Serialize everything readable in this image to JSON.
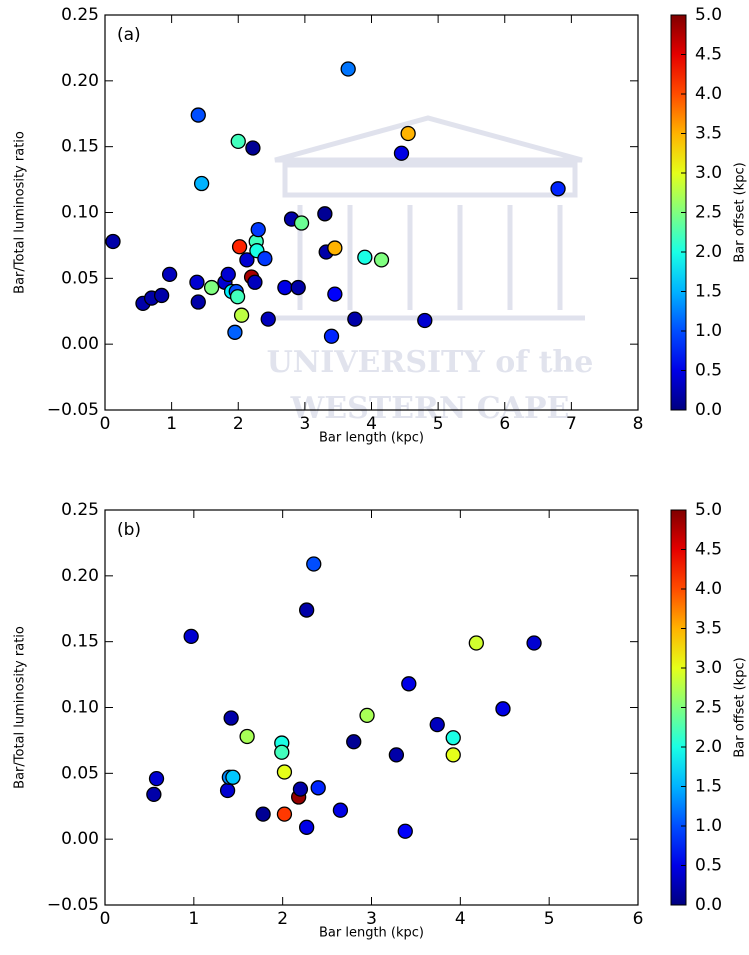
{
  "watermark": [
    "UNIVERSITY of the",
    "WESTERN CAPE"
  ],
  "chart_data": [
    {
      "type": "scatter",
      "annotation": "(a)",
      "x_label": "Bar length (kpc)",
      "y_label": "Bar/Total luminosity ratio",
      "x": [
        0.12,
        0.57,
        0.7,
        0.85,
        0.97,
        1.38,
        1.4,
        1.4,
        1.45,
        1.6,
        1.8,
        1.85,
        1.9,
        1.95,
        1.97,
        1.99,
        2.0,
        2.02,
        2.05,
        2.13,
        2.2,
        2.22,
        2.25,
        2.27,
        2.28,
        2.3,
        2.4,
        2.45,
        2.7,
        2.8,
        2.9,
        2.95,
        3.3,
        3.32,
        3.4,
        3.45,
        3.45,
        3.75,
        3.9,
        3.65,
        4.15,
        4.45,
        4.55,
        4.8,
        6.8
      ],
      "values": [
        0.078,
        0.031,
        0.035,
        0.037,
        0.053,
        0.047,
        0.032,
        0.174,
        0.122,
        0.043,
        0.047,
        0.053,
        0.04,
        0.009,
        0.04,
        0.036,
        0.154,
        0.074,
        0.022,
        0.064,
        0.051,
        0.149,
        0.047,
        0.078,
        0.071,
        0.087,
        0.065,
        0.019,
        0.043,
        0.095,
        0.043,
        0.092,
        0.099,
        0.07,
        0.006,
        0.073,
        0.038,
        0.019,
        0.066,
        0.209,
        0.064,
        0.145,
        0.16,
        0.018,
        0.118
      ],
      "color_values": [
        0.2,
        0.2,
        0.2,
        0.2,
        0.3,
        0.4,
        0.2,
        1.0,
        1.5,
        2.5,
        0.4,
        0.4,
        1.8,
        1.1,
        1.0,
        2.2,
        2.2,
        4.2,
        2.8,
        0.4,
        4.8,
        0.1,
        0.3,
        2.2,
        2.0,
        0.9,
        0.9,
        0.3,
        0.5,
        0.2,
        0.2,
        2.4,
        0.1,
        0.2,
        0.8,
        3.5,
        0.6,
        0.2,
        2.0,
        1.2,
        2.5,
        0.5,
        3.5,
        0.4,
        0.8
      ],
      "colormap": "jet",
      "xlim": [
        0,
        8
      ],
      "xticks": [
        0,
        1,
        2,
        3,
        4,
        5,
        6,
        7,
        8
      ],
      "ylim": [
        -0.05,
        0.25
      ],
      "yticks": [
        {
          "value": -0.05,
          "label": "−0.05"
        },
        {
          "value": 0,
          "label": "0.00"
        },
        0.05,
        {
          "value": 0.1,
          "label": "0.10"
        },
        0.15,
        {
          "value": 0.2,
          "label": "0.20"
        },
        0.25
      ],
      "colorbar": {
        "label": "Bar offset (kpc)",
        "lim": [
          0,
          5
        ],
        "ticks": [
          {
            "value": 0,
            "label": "0.0"
          },
          0.5,
          {
            "value": 1,
            "label": "1.0"
          },
          1.5,
          {
            "value": 2,
            "label": "2.0"
          },
          2.5,
          {
            "value": 3,
            "label": "3.0"
          },
          3.5,
          {
            "value": 4,
            "label": "4.0"
          },
          4.5,
          {
            "value": 5,
            "label": "5.0"
          }
        ]
      }
    },
    {
      "type": "scatter",
      "annotation": "(b)",
      "x_label": "Bar length (kpc)",
      "y_label": "Bar/Total luminosity ratio",
      "x": [
        0.55,
        0.58,
        0.97,
        1.38,
        1.4,
        1.42,
        1.44,
        1.6,
        1.78,
        1.99,
        1.99,
        2.02,
        2.02,
        2.18,
        2.2,
        2.27,
        2.27,
        2.35,
        2.4,
        2.65,
        2.8,
        2.95,
        3.28,
        3.38,
        3.42,
        3.74,
        3.92,
        3.92,
        4.18,
        4.48,
        4.83
      ],
      "values": [
        0.034,
        0.046,
        0.154,
        0.037,
        0.047,
        0.092,
        0.047,
        0.078,
        0.019,
        0.073,
        0.066,
        0.051,
        0.019,
        0.032,
        0.038,
        0.009,
        0.174,
        0.209,
        0.039,
        0.022,
        0.074,
        0.094,
        0.064,
        0.006,
        0.118,
        0.087,
        0.077,
        0.064,
        0.149,
        0.099,
        0.149
      ],
      "color_values": [
        0.2,
        0.4,
        0.4,
        0.4,
        1.3,
        0.2,
        1.6,
        2.7,
        0.1,
        2.0,
        2.2,
        3.0,
        4.1,
        4.9,
        0.2,
        0.5,
        0.2,
        1.0,
        0.8,
        0.5,
        0.1,
        2.7,
        0.2,
        0.6,
        0.5,
        0.3,
        2.0,
        3.0,
        2.9,
        0.5,
        0.4
      ],
      "colormap": "jet",
      "xlim": [
        0,
        6
      ],
      "xticks": [
        0,
        1,
        2,
        3,
        4,
        5,
        6
      ],
      "ylim": [
        -0.05,
        0.25
      ],
      "yticks": [
        {
          "value": -0.05,
          "label": "−0.05"
        },
        {
          "value": 0,
          "label": "0.00"
        },
        0.05,
        {
          "value": 0.1,
          "label": "0.10"
        },
        0.15,
        {
          "value": 0.2,
          "label": "0.20"
        },
        0.25
      ],
      "colorbar": {
        "label": "Bar offset (kpc)",
        "lim": [
          0,
          5
        ],
        "ticks": [
          {
            "value": 0,
            "label": "0.0"
          },
          0.5,
          {
            "value": 1,
            "label": "1.0"
          },
          1.5,
          {
            "value": 2,
            "label": "2.0"
          },
          2.5,
          {
            "value": 3,
            "label": "3.0"
          },
          3.5,
          {
            "value": 4,
            "label": "4.0"
          },
          4.5,
          {
            "value": 5,
            "label": "5.0"
          }
        ]
      }
    }
  ]
}
